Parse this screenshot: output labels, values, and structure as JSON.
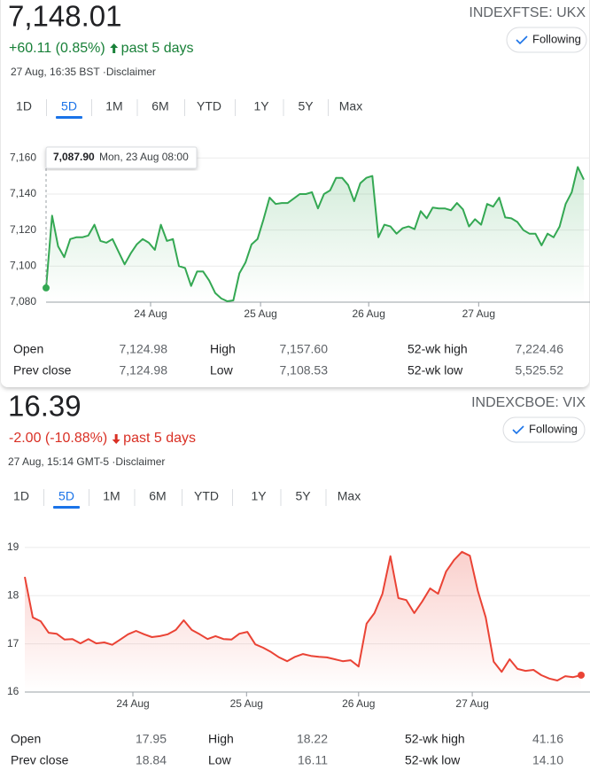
{
  "chart_data": [
    {
      "type": "line",
      "ticker": "INDEXFTSE: UKX",
      "price": "7,148.01",
      "change": "+60.11 (0.85%)",
      "period": "past 5 days",
      "direction": "up",
      "timestamp": "27 Aug, 16:35 BST ·Disclaimer",
      "following": "Following",
      "ranges": [
        "1D",
        "5D",
        "1M",
        "6M",
        "YTD",
        "1Y",
        "5Y",
        "Max"
      ],
      "active_range": "5D",
      "tooltip": {
        "value": "7,087.90",
        "date": "Mon, 23 Aug 08:00"
      },
      "color": "#34a853",
      "text_color": "#188038",
      "values": [
        7087.9,
        7128,
        7111,
        7105,
        7115,
        7116,
        7116,
        7117,
        7123,
        7114,
        7113,
        7115,
        7108,
        7101,
        7107,
        7112,
        7115,
        7113,
        7109,
        7123,
        7114,
        7115,
        7100,
        7099,
        7089,
        7097,
        7097,
        7092,
        7085,
        7082,
        7080.5,
        7081,
        7096,
        7102,
        7112,
        7115,
        7126,
        7138,
        7134.5,
        7135,
        7135,
        7137.5,
        7140,
        7140,
        7141,
        7132,
        7140,
        7142,
        7149,
        7149,
        7145,
        7136,
        7146,
        7149,
        7150,
        7116,
        7123,
        7122,
        7118,
        7121,
        7122,
        7120.5,
        7130.5,
        7126.5,
        7132.5,
        7132,
        7132,
        7131,
        7135,
        7131.5,
        7122,
        7126,
        7123,
        7134.5,
        7133,
        7138,
        7127,
        7126.5,
        7124.5,
        7120,
        7118,
        7118,
        7111.5,
        7118,
        7116,
        7122,
        7134.5,
        7141,
        7155,
        7148
      ],
      "xlim": [
        0,
        89
      ],
      "xticks": [
        {
          "value": 17.3,
          "label": "24 Aug"
        },
        {
          "value": 35.5,
          "label": "25 Aug"
        },
        {
          "value": 53.4,
          "label": "26 Aug"
        },
        {
          "value": 71.6,
          "label": "27 Aug"
        }
      ],
      "ylim": [
        7080,
        7169
      ],
      "yticks": [
        {
          "value": 7080,
          "label": "7,080"
        },
        {
          "value": 7100,
          "label": "7,100"
        },
        {
          "value": 7120,
          "label": "7,120"
        },
        {
          "value": 7140,
          "label": "7,140"
        },
        {
          "value": 7160,
          "label": "7,160"
        }
      ],
      "grid": true,
      "stats": [
        [
          {
            "label": "Open",
            "value": "7,124.98"
          },
          {
            "label": "High",
            "value": "7,157.60"
          },
          {
            "label": "52-wk high",
            "value": "7,224.46"
          }
        ],
        [
          {
            "label": "Prev close",
            "value": "7,124.98"
          },
          {
            "label": "Low",
            "value": "7,108.53"
          },
          {
            "label": "52-wk low",
            "value": "5,525.52"
          }
        ]
      ]
    },
    {
      "type": "line",
      "ticker": "INDEXCBOE: VIX",
      "price": "16.39",
      "change": "-2.00 (-10.88%)",
      "period": "past 5 days",
      "direction": "down",
      "timestamp": "27 Aug, 15:14 GMT-5 ·Disclaimer",
      "following": "Following",
      "ranges": [
        "1D",
        "5D",
        "1M",
        "6M",
        "YTD",
        "1Y",
        "5Y",
        "Max"
      ],
      "active_range": "5D",
      "color": "#ea4335",
      "text_color": "#d93025",
      "values": [
        18.39,
        17.55,
        17.47,
        17.23,
        17.21,
        17.09,
        17.1,
        17.01,
        17.1,
        17.01,
        17.03,
        16.98,
        17.09,
        17.2,
        17.27,
        17.2,
        17.14,
        17.16,
        17.2,
        17.29,
        17.49,
        17.29,
        17.2,
        17.1,
        17.16,
        17.1,
        17.09,
        17.21,
        17.25,
        16.99,
        16.92,
        16.83,
        16.72,
        16.64,
        16.73,
        16.79,
        16.75,
        16.73,
        16.72,
        16.68,
        16.64,
        16.66,
        16.53,
        17.42,
        17.64,
        18.04,
        18.82,
        17.95,
        17.91,
        17.64,
        17.88,
        18.15,
        18.04,
        18.5,
        18.74,
        18.91,
        18.83,
        18.1,
        17.55,
        16.63,
        16.42,
        16.68,
        16.48,
        16.44,
        16.46,
        16.35,
        16.28,
        16.24,
        16.33,
        16.31,
        16.35
      ],
      "xlim": [
        0,
        70
      ],
      "xticks": [
        {
          "value": 13.6,
          "label": "24 Aug"
        },
        {
          "value": 27.9,
          "label": "25 Aug"
        },
        {
          "value": 42.0,
          "label": "26 Aug"
        },
        {
          "value": 56.3,
          "label": "27 Aug"
        }
      ],
      "ylim": [
        16,
        19.33
      ],
      "yticks": [
        16,
        17,
        18,
        19
      ],
      "grid": true,
      "stats": [
        [
          {
            "label": "Open",
            "value": "17.95"
          },
          {
            "label": "High",
            "value": "18.22"
          },
          {
            "label": "52-wk high",
            "value": "41.16"
          }
        ],
        [
          {
            "label": "Prev close",
            "value": "18.84"
          },
          {
            "label": "Low",
            "value": "16.11"
          },
          {
            "label": "52-wk low",
            "value": "14.10"
          }
        ]
      ]
    }
  ]
}
